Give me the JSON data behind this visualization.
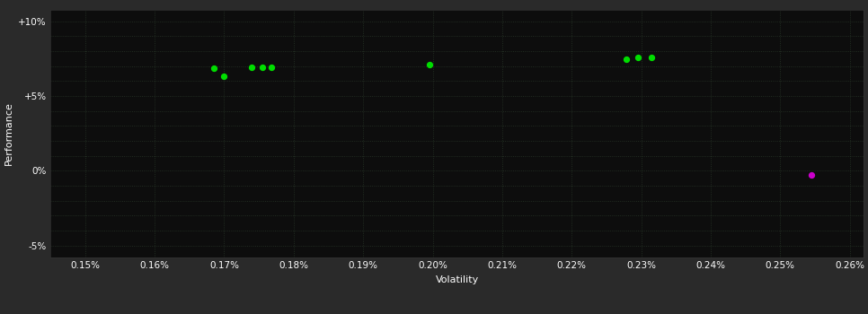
{
  "xlabel": "Volatility",
  "ylabel": "Performance",
  "fig_bg_color": "#2a2a2a",
  "plot_bg_color": "#0d0d0d",
  "text_color": "#ffffff",
  "xlim": [
    0.00145,
    0.00262
  ],
  "ylim": [
    -0.058,
    0.108
  ],
  "xticks": [
    0.0015,
    0.0016,
    0.0017,
    0.0018,
    0.0019,
    0.002,
    0.0021,
    0.0022,
    0.0023,
    0.0024,
    0.0025,
    0.0026
  ],
  "yticks": [
    -0.05,
    0.0,
    0.05,
    0.1
  ],
  "ytick_labels": [
    "-5%",
    "0%",
    "+5%",
    "+10%"
  ],
  "xtick_labels": [
    "0.15%",
    "0.16%",
    "0.17%",
    "0.18%",
    "0.19%",
    "0.20%",
    "0.21%",
    "0.22%",
    "0.23%",
    "0.24%",
    "0.25%",
    "0.26%"
  ],
  "minor_yticks": [
    -0.04,
    -0.03,
    -0.02,
    -0.01,
    0.01,
    0.02,
    0.03,
    0.04,
    0.06,
    0.07,
    0.08,
    0.09
  ],
  "green_points": [
    [
      0.001685,
      0.0685
    ],
    [
      0.0017,
      0.0635
    ],
    [
      0.00174,
      0.0695
    ],
    [
      0.001755,
      0.069
    ],
    [
      0.001768,
      0.0695
    ],
    [
      0.001995,
      0.071
    ],
    [
      0.002278,
      0.0745
    ],
    [
      0.002295,
      0.076
    ],
    [
      0.002315,
      0.076
    ]
  ],
  "magenta_points": [
    [
      0.002545,
      -0.0025
    ]
  ],
  "point_size": 18,
  "green_color": "#00dd00",
  "magenta_color": "#cc00cc",
  "grid_color": "#2a3a2a",
  "grid_alpha": 0.9
}
